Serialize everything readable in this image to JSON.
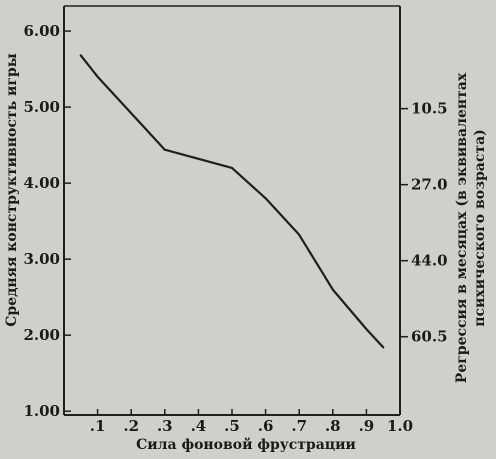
{
  "chart_data": {
    "type": "line",
    "xlabel": "Сила фоновой фрустрации",
    "ylabel": "Средняя конструктивность игры",
    "y2label": [
      "Регрессия в месяцах (в эквивалентах",
      "психического возраста)"
    ],
    "x": [
      0.05,
      0.1,
      0.2,
      0.3,
      0.4,
      0.5,
      0.6,
      0.7,
      0.8,
      0.9,
      0.95
    ],
    "y": [
      5.68,
      5.4,
      4.92,
      4.44,
      4.32,
      4.2,
      3.8,
      3.32,
      2.6,
      2.08,
      1.84
    ],
    "xticks": [
      ".1",
      ".2",
      ".3",
      ".4",
      ".5",
      ".6",
      ".7",
      ".8",
      ".9",
      "1.0"
    ],
    "yticks": [
      "1.00",
      "2.00",
      "3.00",
      "4.00",
      "5.00",
      "6.00"
    ],
    "y2ticks": [
      "10.5",
      "27.0",
      "44.0",
      "60.5"
    ],
    "xlim": [
      0.0,
      1.0
    ],
    "ylim": [
      0.95,
      6.33
    ],
    "y2_tick_positions": [
      4.98,
      3.98,
      2.98,
      1.98
    ],
    "grid": false,
    "colors": {
      "line": "#1f1f1f",
      "background": "#cfcfcb"
    }
  }
}
